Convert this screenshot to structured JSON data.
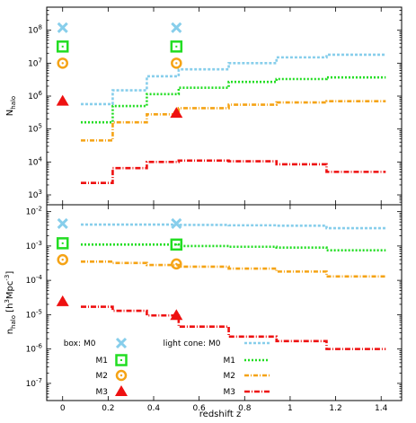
{
  "chart_data": {
    "type": "step",
    "xlabel": "redshift z",
    "xticks": [
      "0",
      "0.2",
      "0.4",
      "0.6",
      "0.8",
      "1",
      "1.2",
      "1.4"
    ],
    "xlim": [
      -0.07,
      1.49
    ],
    "colors": {
      "M0": "#87ceeb",
      "M1": "#22dd22",
      "M2": "#f5a315",
      "M3": "#ee1111"
    },
    "panels": [
      {
        "id": "top",
        "ylabel": "N_halo",
        "log_ylim": [
          2.7,
          8.7
        ],
        "yticks": [
          {
            "exp": 3,
            "label": "10^3"
          },
          {
            "exp": 4,
            "label": "10^4"
          },
          {
            "exp": 5,
            "label": "10^5"
          },
          {
            "exp": 6,
            "label": "10^6"
          },
          {
            "exp": 7,
            "label": "10^7"
          },
          {
            "exp": 8,
            "label": "10^8"
          }
        ],
        "box_points": [
          {
            "series": "M0",
            "marker": "x",
            "x": 0,
            "y": 120000000
          },
          {
            "series": "M1",
            "marker": "square",
            "x": 0,
            "y": 32000000
          },
          {
            "series": "M2",
            "marker": "circle",
            "x": 0,
            "y": 10000000
          },
          {
            "series": "M3",
            "marker": "triangle",
            "x": 0,
            "y": 700000
          },
          {
            "series": "M0",
            "marker": "x",
            "x": 0.5,
            "y": 120000000
          },
          {
            "series": "M1",
            "marker": "square",
            "x": 0.5,
            "y": 32000000
          },
          {
            "series": "M2",
            "marker": "circle",
            "x": 0.5,
            "y": 10000000
          },
          {
            "series": "M3",
            "marker": "triangle",
            "x": 0.5,
            "y": 300000
          }
        ],
        "light_cone": [
          {
            "series": "M0",
            "edges": [
              0.08,
              0.22,
              0.37,
              0.51,
              0.73,
              0.94,
              1.16,
              1.42
            ],
            "values": [
              570000,
              1500000,
              4000000,
              6500000,
              10000000,
              15000000,
              18000000
            ]
          },
          {
            "series": "M1",
            "edges": [
              0.08,
              0.22,
              0.37,
              0.51,
              0.73,
              0.94,
              1.16,
              1.42
            ],
            "values": [
              160000,
              500000,
              1150000,
              1800000,
              2700000,
              3300000,
              3700000
            ]
          },
          {
            "series": "M2",
            "edges": [
              0.08,
              0.22,
              0.37,
              0.51,
              0.73,
              0.94,
              1.16,
              1.42
            ],
            "values": [
              45000,
              160000,
              280000,
              430000,
              550000,
              640000,
              700000
            ]
          },
          {
            "series": "M3",
            "edges": [
              0.08,
              0.22,
              0.37,
              0.51,
              0.73,
              0.94,
              1.16,
              1.42
            ],
            "values": [
              2300,
              6500,
              10000,
              11000,
              10500,
              8500,
              5000
            ]
          }
        ]
      },
      {
        "id": "bottom",
        "ylabel": "n_halo [h^3Mpc^-3]",
        "log_ylim": [
          -7.5,
          -1.8
        ],
        "yticks": [
          {
            "exp": -7,
            "label": "10^-7"
          },
          {
            "exp": -6,
            "label": "10^-6"
          },
          {
            "exp": -5,
            "label": "10^-5"
          },
          {
            "exp": -4,
            "label": "10^-4"
          },
          {
            "exp": -3,
            "label": "10^-3"
          },
          {
            "exp": -2,
            "label": "10^-2"
          }
        ],
        "box_points": [
          {
            "series": "M0",
            "marker": "x",
            "x": 0,
            "y": 0.0045
          },
          {
            "series": "M1",
            "marker": "square",
            "x": 0,
            "y": 0.0012
          },
          {
            "series": "M2",
            "marker": "circle",
            "x": 0,
            "y": 0.0004
          },
          {
            "series": "M3",
            "marker": "triangle",
            "x": 0,
            "y": 2.4e-05
          },
          {
            "series": "M0",
            "marker": "x",
            "x": 0.5,
            "y": 0.0045
          },
          {
            "series": "M1",
            "marker": "square",
            "x": 0.5,
            "y": 0.0011
          },
          {
            "series": "M2",
            "marker": "circle",
            "x": 0.5,
            "y": 0.0003
          },
          {
            "series": "M3",
            "marker": "triangle",
            "x": 0.5,
            "y": 9.5e-06
          }
        ],
        "light_cone": [
          {
            "series": "M0",
            "edges": [
              0.08,
              0.22,
              0.37,
              0.51,
              0.73,
              0.94,
              1.16,
              1.42
            ],
            "values": [
              0.0042,
              0.0042,
              0.0042,
              0.0041,
              0.004,
              0.0039,
              0.0033
            ]
          },
          {
            "series": "M1",
            "edges": [
              0.08,
              0.22,
              0.37,
              0.51,
              0.73,
              0.94,
              1.16,
              1.42
            ],
            "values": [
              0.0011,
              0.0011,
              0.0011,
              0.001,
              0.00095,
              0.0009,
              0.00075
            ]
          },
          {
            "series": "M2",
            "edges": [
              0.08,
              0.22,
              0.37,
              0.51,
              0.73,
              0.94,
              1.16,
              1.42
            ],
            "values": [
              0.00035,
              0.00032,
              0.00028,
              0.00025,
              0.00022,
              0.00018,
              0.00013
            ]
          },
          {
            "series": "M3",
            "edges": [
              0.08,
              0.22,
              0.37,
              0.51,
              0.73,
              0.94,
              1.16,
              1.42
            ],
            "values": [
              1.7e-05,
              1.3e-05,
              9.5e-06,
              4.5e-06,
              2.3e-06,
              1.7e-06,
              1e-06
            ]
          }
        ]
      }
    ],
    "legend": {
      "box_title": "box:",
      "lightcone_title": "light cone:",
      "entries": [
        {
          "series": "M0",
          "marker": "x",
          "label": "M0"
        },
        {
          "series": "M1",
          "marker": "square",
          "label": "M1"
        },
        {
          "series": "M2",
          "marker": "circle",
          "label": "M2"
        },
        {
          "series": "M3",
          "marker": "triangle",
          "label": "M3"
        }
      ]
    }
  }
}
